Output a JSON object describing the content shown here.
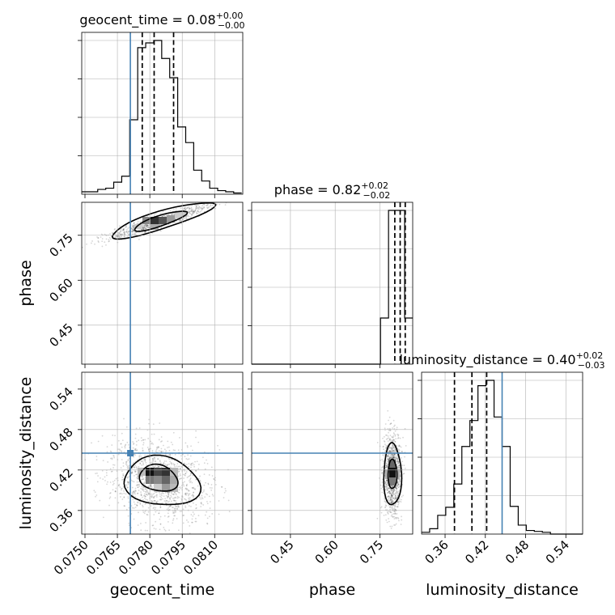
{
  "chart_data": {
    "type": "corner",
    "parameters": [
      {
        "name": "geocent_time",
        "axis_label": "geocent_time",
        "title": "geocent_time = 0.08",
        "title_sup": "+0.00",
        "title_sub": "−0.00",
        "lim": [
          0.07485,
          0.0823
        ],
        "ticks": [
          0.075,
          0.0765,
          0.078,
          0.0795,
          0.081
        ],
        "tick_labels": [
          "0.0750",
          "0.0765",
          "0.0780",
          "0.0795",
          "0.0810"
        ],
        "truth": 0.0771,
        "quantiles": [
          0.07765,
          0.0782,
          0.0791
        ],
        "hist_edges_start": 0.07485,
        "hist_edges_step": 0.00037,
        "hist_counts": [
          2,
          2,
          4,
          5,
          10,
          15,
          62,
          122,
          126,
          128,
          113,
          97,
          56,
          43,
          20,
          11,
          5,
          3,
          2,
          1
        ]
      },
      {
        "name": "phase",
        "axis_label": "phase",
        "title": "phase = 0.82",
        "title_sup": "+0.02",
        "title_sub": "−0.02",
        "lim": [
          0.32,
          0.86
        ],
        "ticks": [
          0.45,
          0.6,
          0.75
        ],
        "tick_labels": [
          "0.45",
          "0.60",
          "0.75"
        ],
        "truth": null,
        "quantiles": [
          0.8,
          0.818,
          0.835
        ],
        "hist_edges_start": 0.32,
        "hist_edges_step": 0.027,
        "hist_counts": [
          0,
          0,
          0,
          0,
          0,
          0,
          0,
          0,
          0,
          0,
          0,
          0,
          0,
          0,
          0,
          0,
          3,
          10,
          10,
          3
        ]
      },
      {
        "name": "luminosity_distance",
        "axis_label": "luminosity_distance",
        "title": "luminosity_distance = 0.40",
        "title_sup": "+0.02",
        "title_sub": "−0.03",
        "lim": [
          0.325,
          0.565
        ],
        "ticks": [
          0.36,
          0.42,
          0.48,
          0.54
        ],
        "tick_labels": [
          "0.36",
          "0.42",
          "0.48",
          "0.54"
        ],
        "truth": 0.445,
        "quantiles": [
          0.374,
          0.4,
          0.422
        ],
        "hist_edges_start": 0.325,
        "hist_edges_step": 0.012,
        "hist_counts": [
          2,
          6,
          21,
          30,
          56,
          98,
          127,
          166,
          172,
          131,
          98,
          31,
          10,
          4,
          3,
          2,
          0,
          0,
          0,
          0
        ]
      }
    ],
    "truth_color": "#4682b4",
    "grid": true,
    "contour_levels": [
      "39%",
      "86%"
    ]
  }
}
